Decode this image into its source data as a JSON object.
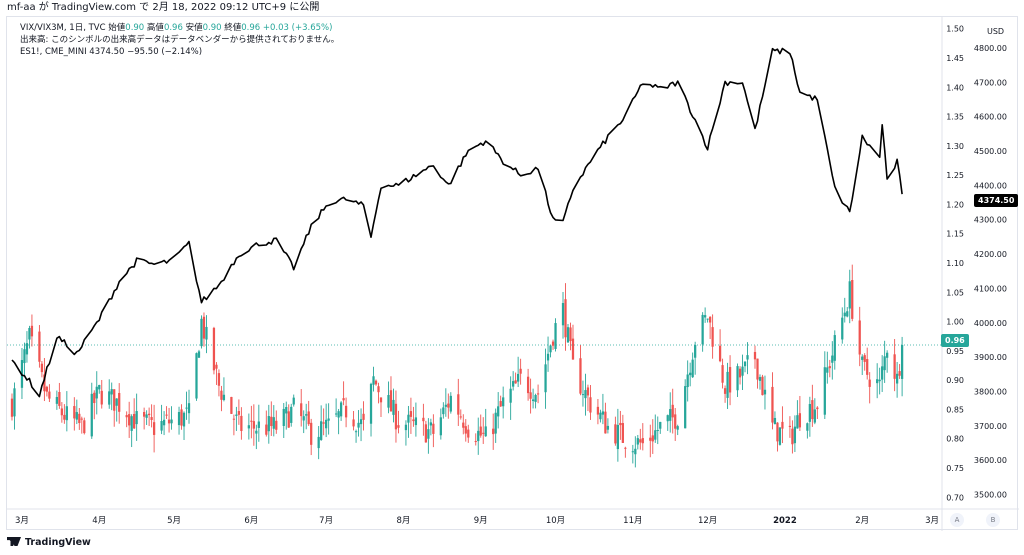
{
  "header": {
    "text": "mf-aa が TradingView.com で 2月 18, 2022 09:12 UTC+9 に公開"
  },
  "legend": {
    "main_symbol": "VIX/VIX3M, 1日, TVC",
    "open_label": "始値",
    "open_value": "0.90",
    "high_label": "高値",
    "high_value": "0.96",
    "low_label": "安値",
    "low_value": "0.90",
    "close_label": "終値",
    "close_value": "0.96",
    "change": "+0.03 (+3.65%)",
    "volume_notice": "出来高: このシンボルの出来高データはデータベンダーから提供されておりません。",
    "compare_symbol": "ES1!, CME_MINI",
    "compare_value": "4374.50",
    "compare_change": "−95.50 (−2.14%)"
  },
  "price_tags": {
    "ratio_last": "0.96",
    "es_last": "4374.50",
    "ratio_color": "#26a69a",
    "es_color": "#000000"
  },
  "axis": {
    "currency": "USD",
    "btn_a": "A",
    "btn_b": "B"
  },
  "footer": {
    "brand": "TradingView"
  },
  "chart_data": {
    "type": "candlestick+line",
    "series": [
      {
        "name": "VIX/VIX3M, 1日, TVC",
        "kind": "candlestick",
        "up_color": "#26a69a",
        "down_color": "#ef5350"
      },
      {
        "name": "ES1!, CME_MINI",
        "kind": "line",
        "color": "#000000"
      }
    ],
    "x_labels": [
      "3月",
      "4月",
      "5月",
      "6月",
      "7月",
      "8月",
      "9月",
      "10月",
      "11月",
      "12月",
      "2022",
      "2月",
      "3月"
    ],
    "ratio_axis": {
      "ticks": [
        "0.70",
        "0.75",
        "0.80",
        "0.85",
        "0.90",
        "0.95",
        "1.00",
        "1.05",
        "1.10",
        "1.15",
        "1.20",
        "1.25",
        "1.30",
        "1.35",
        "1.40",
        "1.45",
        "1.50"
      ],
      "range": [
        0.68,
        1.52
      ]
    },
    "es_axis": {
      "ticks": [
        "3500.00",
        "3600.00",
        "3700.00",
        "3800.00",
        "3900.00",
        "4000.00",
        "4100.00",
        "4200.00",
        "4300.00",
        "4400.00",
        "4500.00",
        "4600.00",
        "4700.00",
        "4800.00"
      ],
      "range": [
        3458,
        4890
      ]
    },
    "ratio_close_keypoints": [
      [
        "2021-02-25",
        0.86
      ],
      [
        "2021-03-04",
        0.97
      ],
      [
        "2021-03-11",
        0.87
      ],
      [
        "2021-03-18",
        0.84
      ],
      [
        "2021-03-25",
        0.82
      ],
      [
        "2021-04-01",
        0.88
      ],
      [
        "2021-04-09",
        0.86
      ],
      [
        "2021-04-16",
        0.83
      ],
      [
        "2021-04-23",
        0.82
      ],
      [
        "2021-04-30",
        0.83
      ],
      [
        "2021-05-07",
        0.84
      ],
      [
        "2021-05-12",
        1.0
      ],
      [
        "2021-05-19",
        0.89
      ],
      [
        "2021-05-27",
        0.82
      ],
      [
        "2021-06-04",
        0.82
      ],
      [
        "2021-06-11",
        0.82
      ],
      [
        "2021-06-18",
        0.85
      ],
      [
        "2021-06-25",
        0.81
      ],
      [
        "2021-07-02",
        0.82
      ],
      [
        "2021-07-09",
        0.85
      ],
      [
        "2021-07-16",
        0.82
      ],
      [
        "2021-07-20",
        0.9
      ],
      [
        "2021-07-30",
        0.83
      ],
      [
        "2021-08-06",
        0.82
      ],
      [
        "2021-08-13",
        0.81
      ],
      [
        "2021-08-20",
        0.87
      ],
      [
        "2021-08-27",
        0.82
      ],
      [
        "2021-09-03",
        0.8
      ],
      [
        "2021-09-10",
        0.86
      ],
      [
        "2021-09-17",
        0.9
      ],
      [
        "2021-09-24",
        0.88
      ],
      [
        "2021-09-30",
        0.98
      ],
      [
        "2021-10-04",
        1.02
      ],
      [
        "2021-10-08",
        0.92
      ],
      [
        "2021-10-15",
        0.86
      ],
      [
        "2021-10-22",
        0.82
      ],
      [
        "2021-10-29",
        0.8
      ],
      [
        "2021-11-05",
        0.79
      ],
      [
        "2021-11-12",
        0.82
      ],
      [
        "2021-11-19",
        0.84
      ],
      [
        "2021-11-26",
        0.97
      ],
      [
        "2021-12-01",
        1.01
      ],
      [
        "2021-12-08",
        0.89
      ],
      [
        "2021-12-15",
        0.91
      ],
      [
        "2021-12-20",
        0.94
      ],
      [
        "2021-12-27",
        0.82
      ],
      [
        "2022-01-03",
        0.8
      ],
      [
        "2022-01-07",
        0.84
      ],
      [
        "2022-01-14",
        0.86
      ],
      [
        "2022-01-21",
        0.96
      ],
      [
        "2022-01-27",
        1.05
      ],
      [
        "2022-02-01",
        0.92
      ],
      [
        "2022-02-08",
        0.89
      ],
      [
        "2022-02-11",
        0.96
      ],
      [
        "2022-02-15",
        0.9
      ],
      [
        "2022-02-17",
        0.96
      ]
    ],
    "es_close_keypoints": [
      [
        "2021-02-25",
        3890
      ],
      [
        "2021-03-04",
        3830
      ],
      [
        "2021-03-08",
        3790
      ],
      [
        "2021-03-15",
        3960
      ],
      [
        "2021-03-23",
        3910
      ],
      [
        "2021-04-01",
        4010
      ],
      [
        "2021-04-09",
        4120
      ],
      [
        "2021-04-16",
        4180
      ],
      [
        "2021-04-23",
        4170
      ],
      [
        "2021-04-30",
        4180
      ],
      [
        "2021-05-07",
        4230
      ],
      [
        "2021-05-12",
        4060
      ],
      [
        "2021-05-19",
        4110
      ],
      [
        "2021-05-27",
        4200
      ],
      [
        "2021-06-04",
        4230
      ],
      [
        "2021-06-11",
        4240
      ],
      [
        "2021-06-18",
        4160
      ],
      [
        "2021-06-25",
        4280
      ],
      [
        "2021-07-02",
        4350
      ],
      [
        "2021-07-09",
        4360
      ],
      [
        "2021-07-16",
        4340
      ],
      [
        "2021-07-19",
        4250
      ],
      [
        "2021-07-23",
        4400
      ],
      [
        "2021-07-30",
        4400
      ],
      [
        "2021-08-06",
        4430
      ],
      [
        "2021-08-13",
        4460
      ],
      [
        "2021-08-19",
        4400
      ],
      [
        "2021-08-27",
        4500
      ],
      [
        "2021-09-03",
        4530
      ],
      [
        "2021-09-10",
        4470
      ],
      [
        "2021-09-17",
        4430
      ],
      [
        "2021-09-24",
        4450
      ],
      [
        "2021-09-30",
        4300
      ],
      [
        "2021-10-04",
        4290
      ],
      [
        "2021-10-08",
        4390
      ],
      [
        "2021-10-15",
        4470
      ],
      [
        "2021-10-22",
        4540
      ],
      [
        "2021-10-29",
        4600
      ],
      [
        "2021-11-05",
        4700
      ],
      [
        "2021-11-12",
        4680
      ],
      [
        "2021-11-19",
        4700
      ],
      [
        "2021-11-26",
        4590
      ],
      [
        "2021-12-01",
        4510
      ],
      [
        "2021-12-08",
        4700
      ],
      [
        "2021-12-15",
        4700
      ],
      [
        "2021-12-20",
        4560
      ],
      [
        "2021-12-27",
        4790
      ],
      [
        "2022-01-03",
        4790
      ],
      [
        "2022-01-07",
        4670
      ],
      [
        "2022-01-14",
        4650
      ],
      [
        "2022-01-21",
        4390
      ],
      [
        "2022-01-27",
        4320
      ],
      [
        "2022-02-01",
        4540
      ],
      [
        "2022-02-08",
        4480
      ],
      [
        "2022-02-09",
        4580
      ],
      [
        "2022-02-11",
        4410
      ],
      [
        "2022-02-15",
        4470
      ],
      [
        "2022-02-17",
        4374.5
      ]
    ],
    "last_values": {
      "ratio": 0.96,
      "es": 4374.5
    }
  }
}
